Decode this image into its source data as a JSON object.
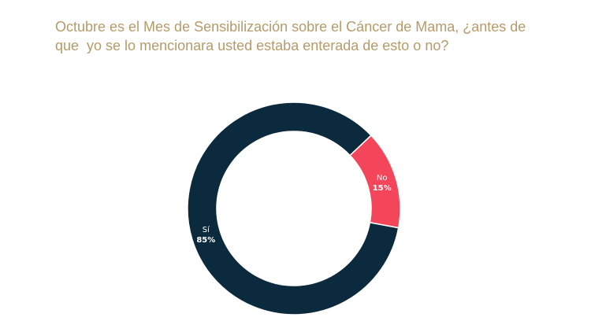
{
  "chart_data": {
    "type": "pie",
    "title_lines": [
      "Octubre es el Mes de Sensibilización sobre el Cáncer de Mama, ¿antes de",
      "que  yo se lo mencionara usted estaba enterada de esto o no?"
    ],
    "donut": true,
    "slices": [
      {
        "label": "Sí",
        "value": 85,
        "value_label": "85%",
        "color": "#0c2a3e"
      },
      {
        "label": "No",
        "value": 15,
        "value_label": "15%",
        "color": "#f4465a"
      }
    ],
    "legend": "none"
  }
}
